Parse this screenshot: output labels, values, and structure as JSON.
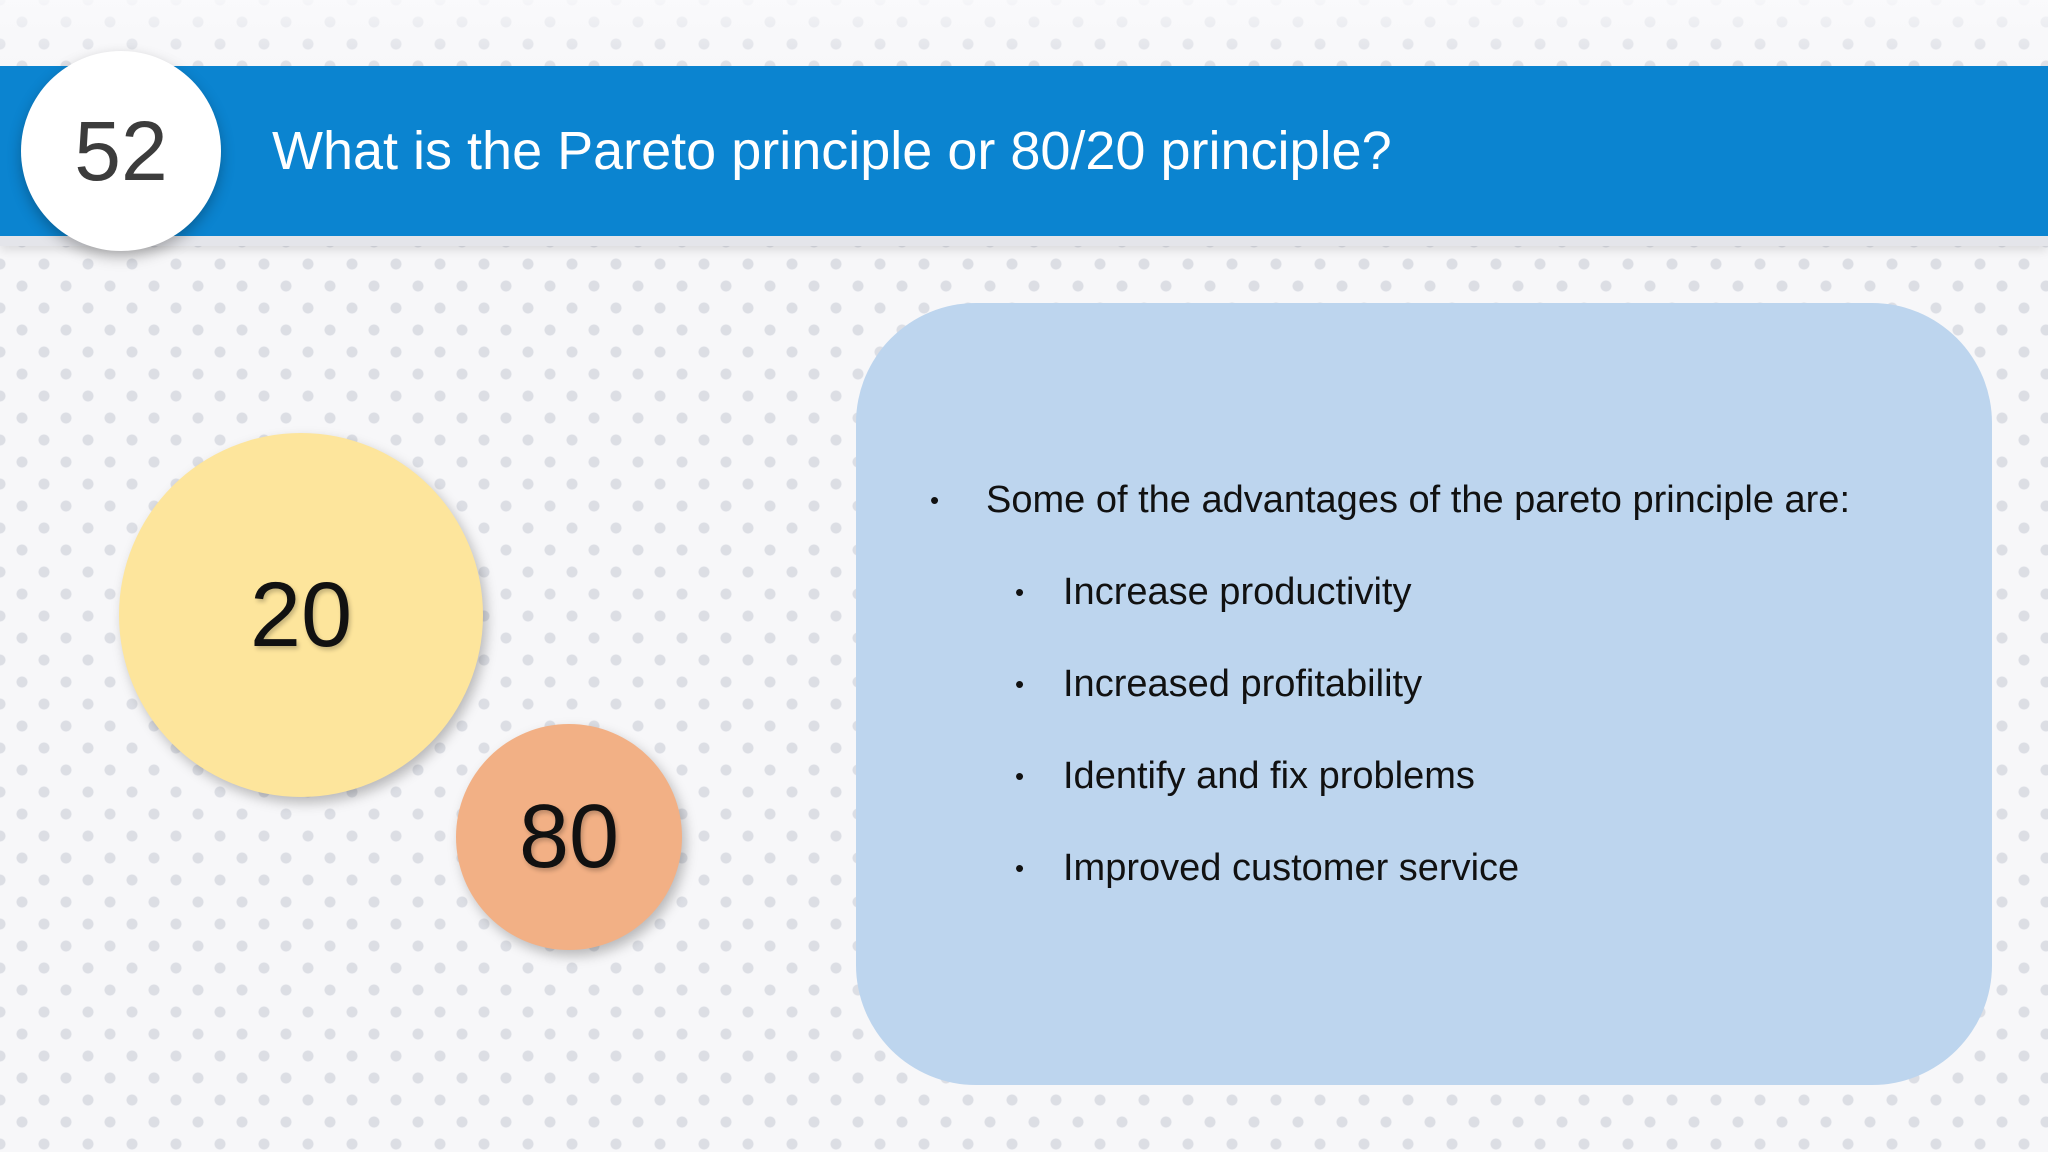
{
  "header": {
    "slide_number": "52",
    "title": "What is the Pareto principle or 80/20 principle?"
  },
  "bubbles": {
    "small_value": "20",
    "large_value": "80"
  },
  "panel": {
    "intro": "Some of the advantages of the pareto principle are:",
    "bullet_symbol": "•",
    "advantages": [
      "Increase productivity",
      "Increased profitability",
      "Identify and fix problems",
      "Improved customer service"
    ]
  },
  "colors": {
    "header_blue": "#0b84d0",
    "panel_blue": "#bdd5ee",
    "bubble_yellow": "#fde59c",
    "bubble_orange": "#f2b085"
  }
}
